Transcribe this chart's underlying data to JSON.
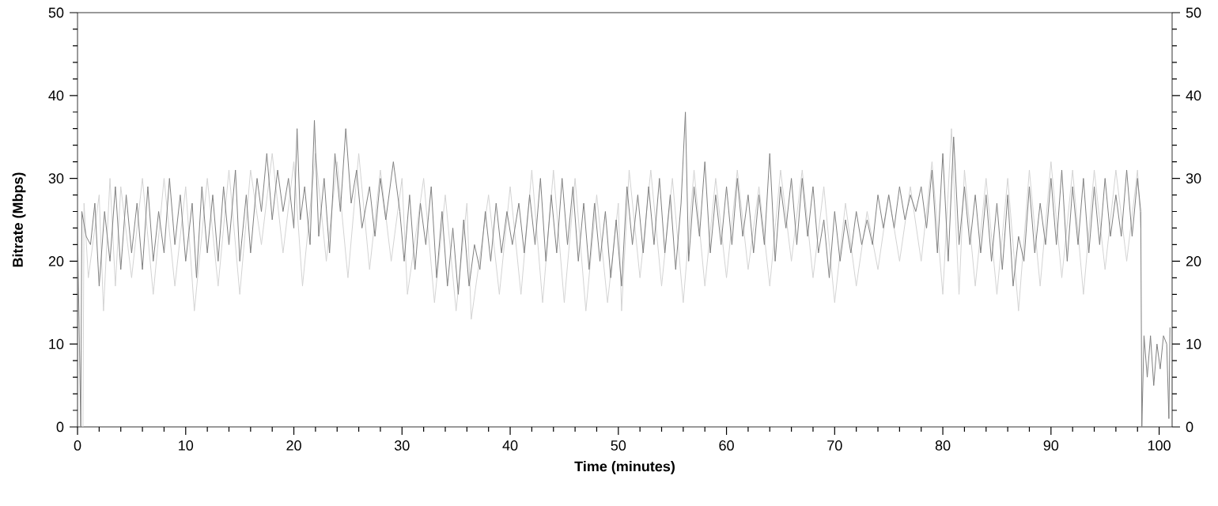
{
  "chart_data": {
    "type": "line",
    "xlabel": "Time (minutes)",
    "ylabel": "Bitrate (Mbps)",
    "xlim": [
      0,
      101.2
    ],
    "xticks": [
      0,
      10,
      20,
      30,
      40,
      50,
      60,
      70,
      80,
      90,
      100
    ],
    "ylim": [
      0,
      50
    ],
    "yticks": [
      0,
      10,
      20,
      30,
      40,
      50
    ],
    "y2lim": [
      0,
      50
    ],
    "y2ticks": [
      0,
      10,
      20,
      30,
      40,
      50
    ],
    "grid": false,
    "marker": "none",
    "line_style": "solid",
    "series": [
      {
        "color": "#d3d3d3",
        "x": [
          0.5,
          0.6,
          1,
          2,
          2.4,
          3,
          3.5,
          4,
          5,
          6,
          7,
          8,
          9,
          10,
          10.8,
          12,
          13,
          14,
          15,
          16,
          17,
          18,
          19,
          20,
          20.8,
          22,
          23,
          24,
          25,
          26,
          27,
          28,
          29,
          30,
          30.5,
          32,
          33,
          34,
          35,
          36,
          36.4,
          38,
          39,
          40,
          41,
          42,
          43,
          44,
          45,
          46,
          47,
          48,
          49,
          50,
          50.3,
          51,
          52,
          53,
          54,
          55,
          56,
          57,
          58,
          59,
          60,
          61,
          62,
          63,
          64,
          65,
          66,
          67,
          68,
          69,
          70,
          71,
          72,
          73,
          74,
          75,
          76,
          77,
          78,
          79,
          80,
          80.8,
          81.5,
          82,
          83,
          84,
          85,
          86,
          87,
          88,
          89,
          90,
          91,
          92,
          93,
          94,
          95,
          96,
          97,
          98,
          98.3
        ],
        "values": [
          0,
          27,
          18,
          28,
          14,
          30,
          17,
          29,
          18,
          30,
          16,
          30,
          17,
          29,
          14,
          30,
          17,
          31,
          16,
          31,
          22,
          33,
          21,
          32,
          17,
          33,
          20,
          32,
          18,
          33,
          19,
          31,
          20,
          30,
          16,
          30,
          15,
          28,
          14,
          27,
          13,
          28,
          16,
          29,
          16,
          31,
          15,
          31,
          15,
          30,
          14,
          28,
          15,
          27,
          14,
          31,
          18,
          31,
          17,
          30,
          15,
          31,
          17,
          30,
          18,
          31,
          19,
          29,
          17,
          31,
          20,
          31,
          18,
          29,
          15,
          27,
          17,
          26,
          19,
          28,
          20,
          29,
          20,
          32,
          16,
          36,
          16,
          31,
          17,
          30,
          16,
          30,
          14,
          31,
          17,
          32,
          18,
          31,
          16,
          31,
          19,
          31,
          20,
          31,
          24
        ]
      },
      {
        "color": "#808080",
        "x": [
          0,
          0.3,
          0.4,
          0.8,
          1.2,
          1.6,
          2,
          2.5,
          3,
          3.5,
          4,
          4.5,
          5,
          5.5,
          6,
          6.5,
          7,
          7.5,
          8,
          8.5,
          9,
          9.5,
          10,
          10.6,
          11,
          11.5,
          12,
          12.5,
          13,
          13.5,
          14,
          14.6,
          15,
          15.6,
          16,
          16.6,
          17,
          17.5,
          18,
          18.5,
          19,
          19.5,
          20,
          20.3,
          20.6,
          21,
          21.5,
          21.9,
          22.3,
          22.8,
          23.3,
          23.8,
          24.3,
          24.8,
          25.3,
          25.8,
          26.3,
          27,
          27.5,
          28,
          28.5,
          29.2,
          29.8,
          30.2,
          30.7,
          31.2,
          31.7,
          32.2,
          32.7,
          33.2,
          33.7,
          34.2,
          34.7,
          35.2,
          35.7,
          36.2,
          36.7,
          37.2,
          37.7,
          38.2,
          38.7,
          39.2,
          39.7,
          40.2,
          40.8,
          41.3,
          41.8,
          42.3,
          42.8,
          43.3,
          43.8,
          44.3,
          44.8,
          45.3,
          45.8,
          46.3,
          46.8,
          47.3,
          47.8,
          48.3,
          48.8,
          49.3,
          49.8,
          50.3,
          50.8,
          51.3,
          51.8,
          52.3,
          52.8,
          53.3,
          53.8,
          54.3,
          54.8,
          55.3,
          55.8,
          56.2,
          56.5,
          57,
          57.5,
          58,
          58.5,
          59,
          59.5,
          60,
          60.5,
          61,
          61.5,
          62,
          62.5,
          63,
          63.5,
          64,
          64.5,
          65,
          65.5,
          66,
          66.5,
          67,
          67.5,
          68,
          68.5,
          69,
          69.5,
          70,
          70.5,
          71,
          71.5,
          72,
          72.5,
          73,
          73.5,
          74,
          74.5,
          75,
          75.5,
          76,
          76.5,
          77,
          77.5,
          78,
          78.5,
          79,
          79.5,
          80,
          80.5,
          81,
          81.5,
          82,
          82.5,
          83,
          83.5,
          84,
          84.5,
          85,
          85.5,
          86,
          86.5,
          87,
          87.5,
          88,
          88.5,
          89,
          89.5,
          90,
          90.5,
          91,
          91.5,
          92,
          92.5,
          93,
          93.5,
          94,
          94.5,
          95,
          95.5,
          96,
          96.5,
          97,
          97.5,
          98,
          98.3,
          98.4,
          98.6,
          98.9,
          99.2,
          99.5,
          99.8,
          100.1,
          100.4,
          100.7,
          100.9,
          101
        ],
        "values": [
          24,
          0,
          26,
          23,
          22,
          27,
          17,
          26,
          20,
          29,
          19,
          28,
          21,
          27,
          19,
          29,
          20,
          26,
          21,
          30,
          22,
          28,
          20,
          27,
          18,
          29,
          21,
          28,
          20,
          29,
          22,
          31,
          20,
          28,
          21,
          30,
          26,
          33,
          25,
          31,
          26,
          30,
          24,
          36,
          25,
          29,
          22,
          37,
          23,
          30,
          21,
          33,
          26,
          36,
          27,
          31,
          24,
          29,
          23,
          30,
          25,
          32,
          26,
          20,
          28,
          19,
          27,
          22,
          29,
          18,
          26,
          17,
          24,
          16,
          25,
          17,
          22,
          19,
          26,
          20,
          27,
          21,
          26,
          22,
          27,
          21,
          28,
          22,
          30,
          20,
          28,
          21,
          30,
          22,
          29,
          20,
          27,
          19,
          27,
          20,
          26,
          18,
          25,
          17,
          29,
          22,
          28,
          21,
          29,
          22,
          30,
          21,
          28,
          19,
          27,
          38,
          20,
          29,
          23,
          32,
          21,
          28,
          22,
          29,
          22,
          30,
          23,
          28,
          21,
          28,
          22,
          33,
          20,
          29,
          24,
          30,
          22,
          30,
          23,
          29,
          21,
          25,
          18,
          26,
          20,
          25,
          21,
          26,
          22,
          25,
          22,
          28,
          24,
          28,
          24,
          29,
          25,
          28,
          26,
          29,
          24,
          31,
          21,
          33,
          20,
          35,
          22,
          29,
          22,
          28,
          21,
          28,
          20,
          27,
          19,
          28,
          17,
          23,
          20,
          29,
          21,
          27,
          22,
          30,
          22,
          31,
          20,
          29,
          22,
          30,
          21,
          29,
          22,
          30,
          23,
          28,
          23,
          31,
          23,
          30,
          26,
          0,
          11,
          6,
          11,
          5,
          10,
          7,
          11,
          10,
          1,
          12
        ]
      }
    ]
  }
}
